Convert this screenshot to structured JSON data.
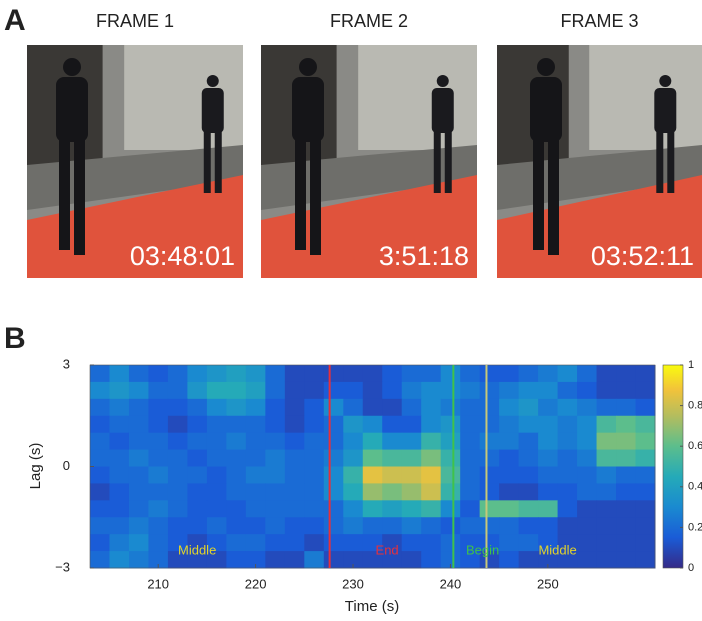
{
  "panel_labels": [
    "A",
    "B"
  ],
  "panel_a": {
    "frames": [
      {
        "title": "FRAME 1",
        "timestamp": "03:48:01"
      },
      {
        "title": "FRAME 2",
        "timestamp": "3:51:18"
      },
      {
        "title": "FRAME 3",
        "timestamp": "03:52:11"
      }
    ]
  },
  "chart_data": {
    "type": "heatmap",
    "xlabel": "Time (s)",
    "ylabel": "Lag (s)",
    "xlim": [
      203,
      261
    ],
    "ylim": [
      -3,
      3
    ],
    "xticks": [
      210,
      220,
      230,
      240,
      250
    ],
    "yticks": [
      {
        "value": -3,
        "label": "−3"
      },
      0,
      3
    ],
    "zlim": [
      0,
      1
    ],
    "zticks": [
      0,
      0.2,
      0.4,
      0.6,
      0.8,
      1
    ],
    "colormap": "parula",
    "xbins": [
      203,
      205,
      207,
      209,
      211,
      213,
      215,
      217,
      219,
      221,
      223,
      225,
      227,
      229,
      231,
      233,
      235,
      237,
      239,
      241,
      243,
      245,
      247,
      249,
      251,
      253,
      255,
      257,
      259,
      261
    ],
    "ybins": [
      3,
      2.5,
      2,
      1.5,
      1,
      0.5,
      0,
      -0.5,
      -1,
      -1.5,
      -2,
      -2.5,
      -3
    ],
    "z": [
      [
        0.2,
        0.3,
        0.2,
        0.15,
        0.2,
        0.3,
        0.35,
        0.4,
        0.35,
        0.2,
        0.1,
        0.1,
        0.1,
        0.1,
        0.1,
        0.15,
        0.2,
        0.2,
        0.3,
        0.2,
        0.15,
        0.15,
        0.2,
        0.25,
        0.3,
        0.2,
        0.1,
        0.1,
        0.1
      ],
      [
        0.3,
        0.35,
        0.3,
        0.2,
        0.2,
        0.35,
        0.45,
        0.45,
        0.4,
        0.2,
        0.1,
        0.1,
        0.15,
        0.15,
        0.1,
        0.15,
        0.25,
        0.3,
        0.3,
        0.25,
        0.2,
        0.25,
        0.3,
        0.3,
        0.2,
        0.15,
        0.1,
        0.1,
        0.1
      ],
      [
        0.2,
        0.25,
        0.2,
        0.15,
        0.15,
        0.2,
        0.3,
        0.35,
        0.3,
        0.15,
        0.1,
        0.15,
        0.3,
        0.2,
        0.1,
        0.1,
        0.2,
        0.3,
        0.25,
        0.2,
        0.2,
        0.3,
        0.35,
        0.25,
        0.3,
        0.25,
        0.2,
        0.2,
        0.15
      ],
      [
        0.15,
        0.2,
        0.2,
        0.15,
        0.1,
        0.15,
        0.2,
        0.2,
        0.2,
        0.15,
        0.1,
        0.15,
        0.2,
        0.35,
        0.3,
        0.15,
        0.15,
        0.3,
        0.35,
        0.2,
        0.2,
        0.25,
        0.3,
        0.3,
        0.25,
        0.3,
        0.55,
        0.6,
        0.55
      ],
      [
        0.2,
        0.15,
        0.2,
        0.2,
        0.15,
        0.2,
        0.2,
        0.25,
        0.2,
        0.2,
        0.15,
        0.2,
        0.2,
        0.3,
        0.45,
        0.3,
        0.3,
        0.5,
        0.4,
        0.2,
        0.25,
        0.25,
        0.2,
        0.3,
        0.25,
        0.3,
        0.65,
        0.65,
        0.6
      ],
      [
        0.2,
        0.2,
        0.25,
        0.2,
        0.2,
        0.15,
        0.2,
        0.2,
        0.2,
        0.25,
        0.2,
        0.2,
        0.25,
        0.35,
        0.6,
        0.55,
        0.55,
        0.65,
        0.5,
        0.2,
        0.2,
        0.15,
        0.2,
        0.25,
        0.2,
        0.25,
        0.55,
        0.55,
        0.5
      ],
      [
        0.15,
        0.2,
        0.2,
        0.25,
        0.2,
        0.2,
        0.15,
        0.2,
        0.25,
        0.25,
        0.2,
        0.2,
        0.3,
        0.5,
        0.85,
        0.8,
        0.8,
        0.85,
        0.55,
        0.2,
        0.15,
        0.15,
        0.15,
        0.2,
        0.2,
        0.2,
        0.25,
        0.2,
        0.2
      ],
      [
        0.1,
        0.15,
        0.2,
        0.2,
        0.2,
        0.15,
        0.15,
        0.2,
        0.2,
        0.2,
        0.2,
        0.2,
        0.3,
        0.45,
        0.7,
        0.65,
        0.7,
        0.8,
        0.5,
        0.2,
        0.15,
        0.1,
        0.1,
        0.15,
        0.15,
        0.2,
        0.2,
        0.15,
        0.15
      ],
      [
        0.15,
        0.15,
        0.2,
        0.25,
        0.2,
        0.15,
        0.15,
        0.15,
        0.2,
        0.2,
        0.2,
        0.2,
        0.2,
        0.3,
        0.45,
        0.4,
        0.45,
        0.5,
        0.3,
        0.15,
        0.6,
        0.6,
        0.55,
        0.55,
        0.15,
        0.1,
        0.1,
        0.1,
        0.1
      ],
      [
        0.2,
        0.2,
        0.25,
        0.2,
        0.15,
        0.15,
        0.2,
        0.15,
        0.15,
        0.2,
        0.15,
        0.15,
        0.2,
        0.25,
        0.2,
        0.2,
        0.25,
        0.2,
        0.15,
        0.2,
        0.2,
        0.2,
        0.15,
        0.15,
        0.1,
        0.1,
        0.1,
        0.1,
        0.1
      ],
      [
        0.15,
        0.25,
        0.3,
        0.2,
        0.15,
        0.1,
        0.15,
        0.2,
        0.2,
        0.15,
        0.15,
        0.1,
        0.15,
        0.15,
        0.15,
        0.1,
        0.15,
        0.15,
        0.2,
        0.15,
        0.15,
        0.2,
        0.2,
        0.15,
        0.1,
        0.1,
        0.1,
        0.1,
        0.1
      ],
      [
        0.2,
        0.3,
        0.25,
        0.2,
        0.1,
        0.1,
        0.1,
        0.15,
        0.15,
        0.1,
        0.1,
        0.25,
        0.1,
        0.1,
        0.1,
        0.1,
        0.1,
        0.15,
        0.2,
        0.15,
        0.1,
        0.15,
        0.1,
        0.1,
        0.1,
        0.1,
        0.1,
        0.1,
        0.1
      ]
    ],
    "events": [
      {
        "x": 227.6,
        "color": "#e8303a"
      },
      {
        "x": 240.3,
        "color": "#3fc24a"
      },
      {
        "x": 243.7,
        "color": "#c8c878"
      }
    ],
    "annotations": [
      {
        "text": "Middle",
        "x": 214,
        "y": -2.5,
        "color": "#e2d42a"
      },
      {
        "text": "End",
        "x": 233.5,
        "y": -2.5,
        "color": "#e8303a"
      },
      {
        "text": "Begin",
        "x": 243.3,
        "y": -2.5,
        "color": "#3fc24a"
      },
      {
        "text": "Middle",
        "x": 251,
        "y": -2.5,
        "color": "#e2d42a"
      }
    ]
  }
}
